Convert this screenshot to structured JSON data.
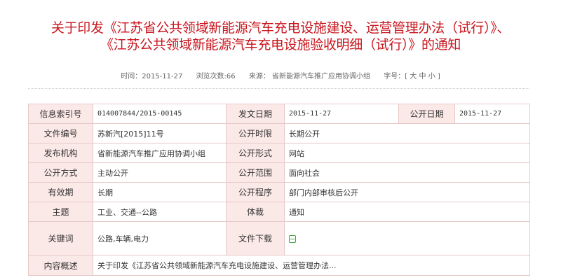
{
  "title": {
    "line1": "关于印发《江苏省公共领域新能源汽车充电设施建设、运营管理办法（试行）》、",
    "line2": "《江苏公共领域新能源汽车充电设施验收明细（试行）》的通知"
  },
  "meta": {
    "time": "时间：2015-11-27",
    "views": "浏览次数:66",
    "source": "来源： 省新能源汽车推广应用协调小组",
    "font_size": "字号：[ 大 中 小 ]"
  },
  "info": {
    "index_label": "信息索引号",
    "index": "014007844/2015-00145",
    "issue_date_label": "发文日期",
    "issue_date": "2015-11-27",
    "public_date_label": "公开日期",
    "public_date": "2015-11-27",
    "doc_no_label": "文件编号",
    "doc_no": "苏新汽[2015]11号",
    "public_term_label": "公开时限",
    "public_term": "长期公开",
    "publisher_label": "发布机构",
    "publisher": "省新能源汽车推广应用协调小组",
    "public_form_label": "公开形式",
    "public_form": "网站",
    "public_mode_label": "公开方式",
    "public_mode": "主动公开",
    "public_scope_label": "公开范围",
    "public_scope": "面向社会",
    "validity_label": "有效期",
    "validity": "长期",
    "public_proc_label": "公开程序",
    "public_proc": "部门内部审核后公开",
    "topic_label": "主题",
    "topic": "工业、交通--公路",
    "genre_label": "体裁",
    "genre": "通知",
    "keywords_label": "关键词",
    "keywords": "公路,车辆,电力",
    "download_label": "文件下载",
    "download_icon": "save-icon",
    "summary_label": "内容概述",
    "summary": "关于印发《江苏省公共领域新能源汽车充电设施建设、运营管理办法..."
  }
}
